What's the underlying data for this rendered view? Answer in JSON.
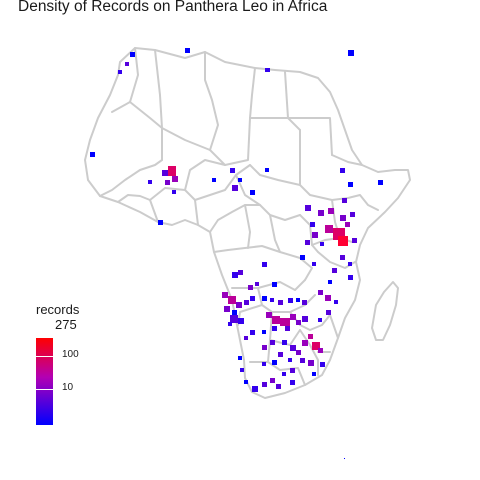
{
  "map": {
    "title": "Density of Records on Panthera Leo in Africa",
    "border_color": "#cccccc",
    "color_low": "#0000ff",
    "color_mid": "#b300b3",
    "color_high": "#ff0000"
  },
  "legend": {
    "title": "records",
    "max_label": "275",
    "ticks": [
      "100",
      "10"
    ]
  }
}
